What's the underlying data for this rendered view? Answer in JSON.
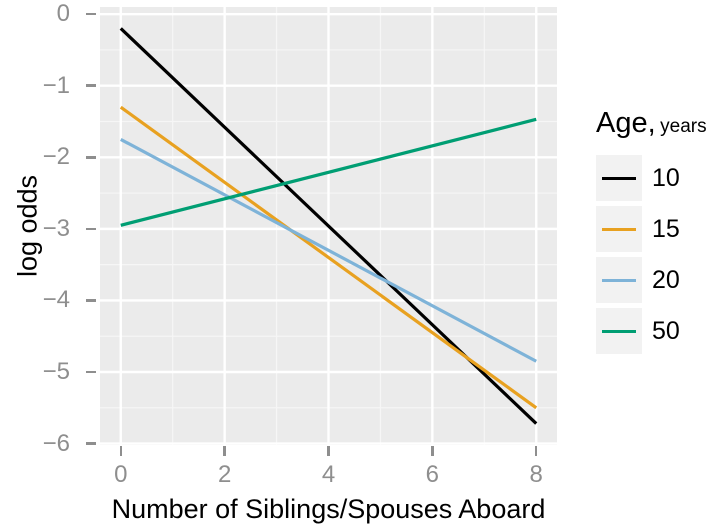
{
  "figure": {
    "background": "#FFFFFF",
    "panel_bg": "#EBEBEB",
    "grid_major_color": "#FFFFFF",
    "grid_minor_color": "#F6F6F6",
    "tick_color": "#8E8E8E",
    "tick_label_color": "#8E8E8E",
    "axis_title_color": "#000000",
    "line_width": 3.2
  },
  "chart_data": {
    "type": "line",
    "title": "",
    "xlabel": "Number of Siblings/Spouses Aboard",
    "ylabel": "log odds",
    "x": [
      0,
      8
    ],
    "series": [
      {
        "name": "10",
        "color": "#000000",
        "values": [
          -0.2,
          -5.72
        ]
      },
      {
        "name": "15",
        "color": "#E8A120",
        "values": [
          -1.3,
          -5.5
        ]
      },
      {
        "name": "20",
        "color": "#7EB3D8",
        "values": [
          -1.75,
          -4.85
        ]
      },
      {
        "name": "50",
        "color": "#009E73",
        "values": [
          -2.95,
          -1.47
        ]
      }
    ],
    "xlim": [
      -0.4,
      8.4
    ],
    "ylim": [
      -6.02,
      0.1
    ],
    "x_ticks": {
      "values": [
        0,
        2,
        4,
        6,
        8
      ],
      "labels": [
        "0",
        "2",
        "4",
        "6",
        "8"
      ]
    },
    "y_ticks": {
      "values": [
        0,
        -1,
        -2,
        -3,
        -4,
        -5,
        -6
      ],
      "labels": [
        "0",
        "−1",
        "−2",
        "−3",
        "−4",
        "−5",
        "−6"
      ]
    },
    "x_minor": [
      1,
      3,
      5,
      7
    ],
    "y_minor": [
      -0.5,
      -1.5,
      -2.5,
      -3.5,
      -4.5,
      -5.5
    ],
    "grid": true,
    "legend_position": "right"
  },
  "legend": {
    "title_main": "Age,",
    "title_sub": "years",
    "key_bg": "#F2F2F2",
    "items": [
      {
        "label": "10",
        "color": "#000000"
      },
      {
        "label": "15",
        "color": "#E8A120"
      },
      {
        "label": "20",
        "color": "#7EB3D8"
      },
      {
        "label": "50",
        "color": "#009E73"
      }
    ]
  }
}
